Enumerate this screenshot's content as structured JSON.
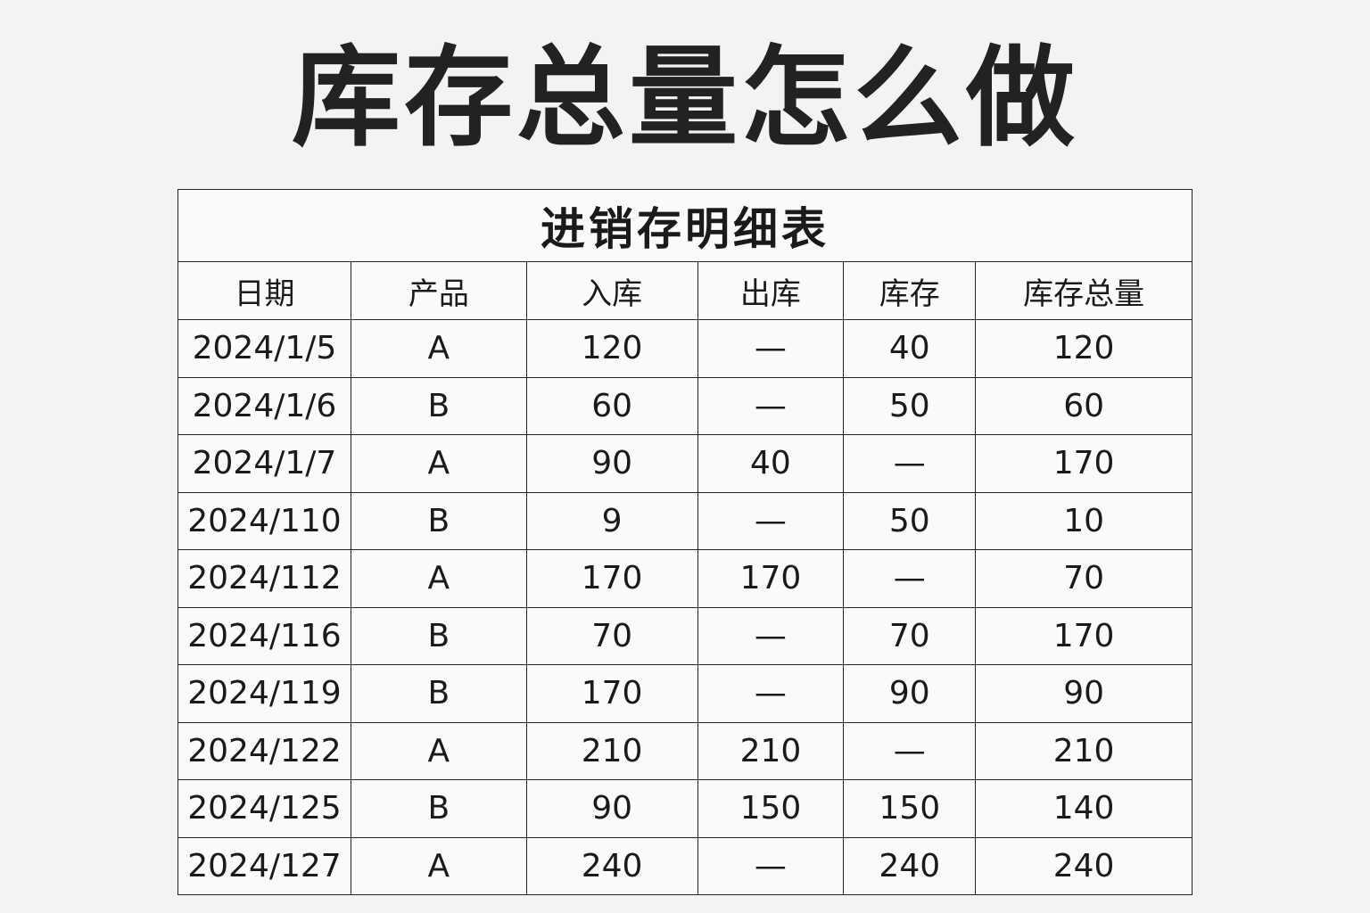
{
  "title": "库存总量怎么做",
  "table": {
    "caption": "进销存明细表",
    "headers": [
      "日期",
      "产品",
      "入库",
      "出库",
      "库存",
      "库存总量"
    ],
    "rows": [
      [
        "2024/1/5",
        "A",
        "120",
        "—",
        "40",
        "120"
      ],
      [
        "2024/1/6",
        "B",
        "60",
        "—",
        "50",
        "60"
      ],
      [
        "2024/1/7",
        "A",
        "90",
        "40",
        "—",
        "170"
      ],
      [
        "2024/110",
        "B",
        "9",
        "—",
        "50",
        "10"
      ],
      [
        "2024/112",
        "A",
        "170",
        "170",
        "—",
        "70"
      ],
      [
        "2024/116",
        "B",
        "70",
        "—",
        "70",
        "170"
      ],
      [
        "2024/119",
        "B",
        "170",
        "—",
        "90",
        "90"
      ],
      [
        "2024/122",
        "A",
        "210",
        "210",
        "—",
        "210"
      ],
      [
        "2024/125",
        "B",
        "90",
        "150",
        "150",
        "140"
      ],
      [
        "2024/127",
        "A",
        "240",
        "—",
        "240",
        "240"
      ]
    ]
  }
}
